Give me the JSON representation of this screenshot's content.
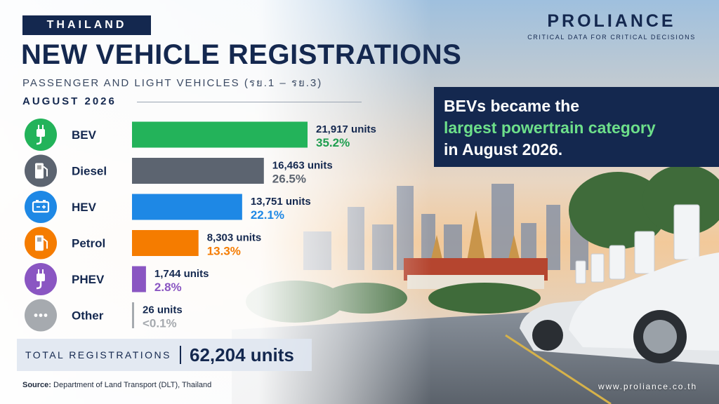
{
  "header": {
    "country": "THAILAND",
    "title": "NEW VEHICLE REGISTRATIONS",
    "subtitle": "PASSENGER AND LIGHT VEHICLES (รย.1 – รย.3)",
    "period": "AUGUST 2026"
  },
  "brand": {
    "name": "PROLIANCE",
    "tagline": "CRITICAL DATA FOR CRITICAL DECISIONS",
    "website": "www.proliance.co.th"
  },
  "callout": {
    "line1": "BEVs became the",
    "line2_highlight": "largest powertrain category",
    "line3": "in August 2026."
  },
  "total": {
    "label": "TOTAL REGISTRATIONS",
    "value": "62,204 units"
  },
  "source": {
    "prefix": "Source:",
    "text": "Department of Land Transport (DLT), Thailand"
  },
  "colors": {
    "navy": "#14284f",
    "highlight_green": "#6ddf8a"
  },
  "chart_data": {
    "type": "bar",
    "orientation": "horizontal",
    "categories": [
      "BEV",
      "Diesel",
      "HEV",
      "Petrol",
      "PHEV",
      "Other"
    ],
    "values": [
      21917,
      16463,
      13751,
      8303,
      1744,
      26
    ],
    "unit_labels": [
      "21,917 units",
      "16,463 units",
      "13,751 units",
      "8,303 units",
      "1,744 units",
      "26 units"
    ],
    "share_labels": [
      "35.2%",
      "26.5%",
      "22.1%",
      "13.3%",
      "2.8%",
      "<0.1%"
    ],
    "colors": [
      "#23b35a",
      "#5c6470",
      "#1e88e5",
      "#f57c00",
      "#8a56c2",
      "#a6aaaf"
    ],
    "icons": [
      "plug-icon",
      "fuel-pump-icon",
      "battery-icon",
      "fuel-pump-icon",
      "plug-icon",
      "ellipsis-icon"
    ],
    "xlim": [
      0,
      21917
    ],
    "grid": false,
    "legend": "none"
  }
}
